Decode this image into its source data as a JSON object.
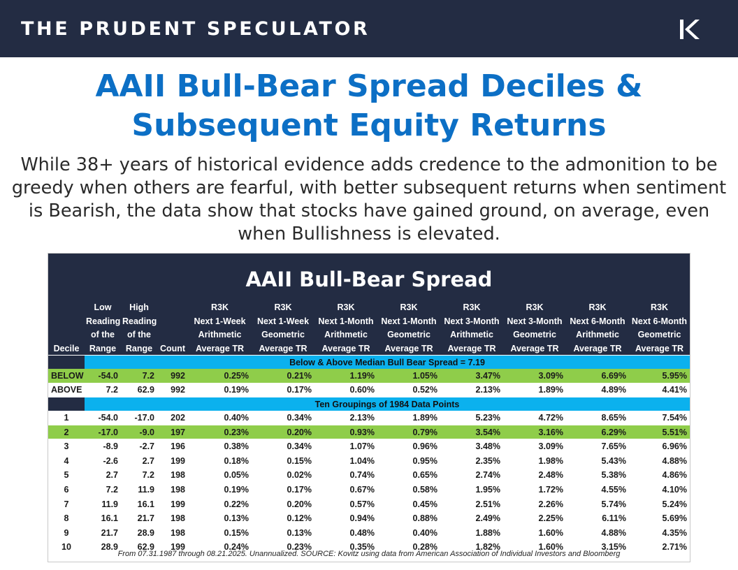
{
  "header": {
    "brand": "THE PRUDENT SPECULATOR",
    "logo_icon": "tps-k-logo-icon"
  },
  "title": {
    "line1": "AAII Bull-Bear Spread Deciles &",
    "line2": "Subsequent Equity Returns"
  },
  "subtitle": "While 38+ years of historical evidence adds credence to the admonition to be greedy when others are fearful, with better subsequent returns when sentiment is Bearish, the data show that stocks have gained ground, on average, even when Bullishness is elevated.",
  "table": {
    "title": "AAII Bull-Bear Spread",
    "columns": [
      [
        "",
        "",
        "",
        "Decile"
      ],
      [
        "Low",
        "Reading",
        "of the",
        "Range"
      ],
      [
        "High",
        "Reading",
        "of the",
        "Range"
      ],
      [
        "",
        "",
        "",
        "Count"
      ],
      [
        "R3K",
        "Next 1-Week",
        "Arithmetic",
        "Average TR"
      ],
      [
        "R3K",
        "Next 1-Week",
        "Geometric",
        "Average TR"
      ],
      [
        "R3K",
        "Next 1-Month",
        "Arithmetic",
        "Average TR"
      ],
      [
        "R3K",
        "Next 1-Month",
        "Geometric",
        "Average TR"
      ],
      [
        "R3K",
        "Next 3-Month",
        "Arithmetic",
        "Average TR"
      ],
      [
        "R3K",
        "Next 3-Month",
        "Geometric",
        "Average TR"
      ],
      [
        "R3K",
        "Next 6-Month",
        "Arithmetic",
        "Average TR"
      ],
      [
        "R3K",
        "Next 6-Month",
        "Geometric",
        "Average TR"
      ]
    ],
    "median_banner": "Below & Above Median Bull Bear Spread = 7.19",
    "median_rows": [
      {
        "label": "BELOW",
        "highlight": true,
        "cells": [
          "-54.0",
          "7.2",
          "992",
          "0.25%",
          "0.21%",
          "1.19%",
          "1.05%",
          "3.47%",
          "3.09%",
          "6.69%",
          "5.95%"
        ]
      },
      {
        "label": "ABOVE",
        "highlight": false,
        "cells": [
          "7.2",
          "62.9",
          "992",
          "0.19%",
          "0.17%",
          "0.60%",
          "0.52%",
          "2.13%",
          "1.89%",
          "4.89%",
          "4.41%"
        ]
      }
    ],
    "decile_banner": "Ten Groupings of 1984 Data Points",
    "decile_rows": [
      {
        "label": "1",
        "highlight": false,
        "cells": [
          "-54.0",
          "-17.0",
          "202",
          "0.40%",
          "0.34%",
          "2.13%",
          "1.89%",
          "5.23%",
          "4.72%",
          "8.65%",
          "7.54%"
        ]
      },
      {
        "label": "2",
        "highlight": true,
        "cells": [
          "-17.0",
          "-9.0",
          "197",
          "0.23%",
          "0.20%",
          "0.93%",
          "0.79%",
          "3.54%",
          "3.16%",
          "6.29%",
          "5.51%"
        ]
      },
      {
        "label": "3",
        "highlight": false,
        "cells": [
          "-8.9",
          "-2.7",
          "196",
          "0.38%",
          "0.34%",
          "1.07%",
          "0.96%",
          "3.48%",
          "3.09%",
          "7.65%",
          "6.96%"
        ]
      },
      {
        "label": "4",
        "highlight": false,
        "cells": [
          "-2.6",
          "2.7",
          "199",
          "0.18%",
          "0.15%",
          "1.04%",
          "0.95%",
          "2.35%",
          "1.98%",
          "5.43%",
          "4.88%"
        ]
      },
      {
        "label": "5",
        "highlight": false,
        "cells": [
          "2.7",
          "7.2",
          "198",
          "0.05%",
          "0.02%",
          "0.74%",
          "0.65%",
          "2.74%",
          "2.48%",
          "5.38%",
          "4.86%"
        ]
      },
      {
        "label": "6",
        "highlight": false,
        "cells": [
          "7.2",
          "11.9",
          "198",
          "0.19%",
          "0.17%",
          "0.67%",
          "0.58%",
          "1.95%",
          "1.72%",
          "4.55%",
          "4.10%"
        ]
      },
      {
        "label": "7",
        "highlight": false,
        "cells": [
          "11.9",
          "16.1",
          "199",
          "0.22%",
          "0.20%",
          "0.57%",
          "0.45%",
          "2.51%",
          "2.26%",
          "5.74%",
          "5.24%"
        ]
      },
      {
        "label": "8",
        "highlight": false,
        "cells": [
          "16.1",
          "21.7",
          "198",
          "0.13%",
          "0.12%",
          "0.94%",
          "0.88%",
          "2.49%",
          "2.25%",
          "6.11%",
          "5.69%"
        ]
      },
      {
        "label": "9",
        "highlight": false,
        "cells": [
          "21.7",
          "28.9",
          "198",
          "0.15%",
          "0.13%",
          "0.48%",
          "0.40%",
          "1.88%",
          "1.60%",
          "4.88%",
          "4.35%"
        ]
      },
      {
        "label": "10",
        "highlight": false,
        "cells": [
          "28.9",
          "62.9",
          "199",
          "0.24%",
          "0.23%",
          "0.35%",
          "0.28%",
          "1.82%",
          "1.60%",
          "3.15%",
          "2.71%"
        ]
      }
    ],
    "footnote": "From 07.31.1987 through 08.21.2025. Unannualized. SOURCE: Kovitz using data from American Association of Individual Investors and Bloomberg"
  },
  "colors": {
    "navy": "#232c43",
    "title_blue": "#0c6fc5",
    "banner_cyan": "#0bb1ee",
    "highlight_green": "#8fcd4a"
  }
}
